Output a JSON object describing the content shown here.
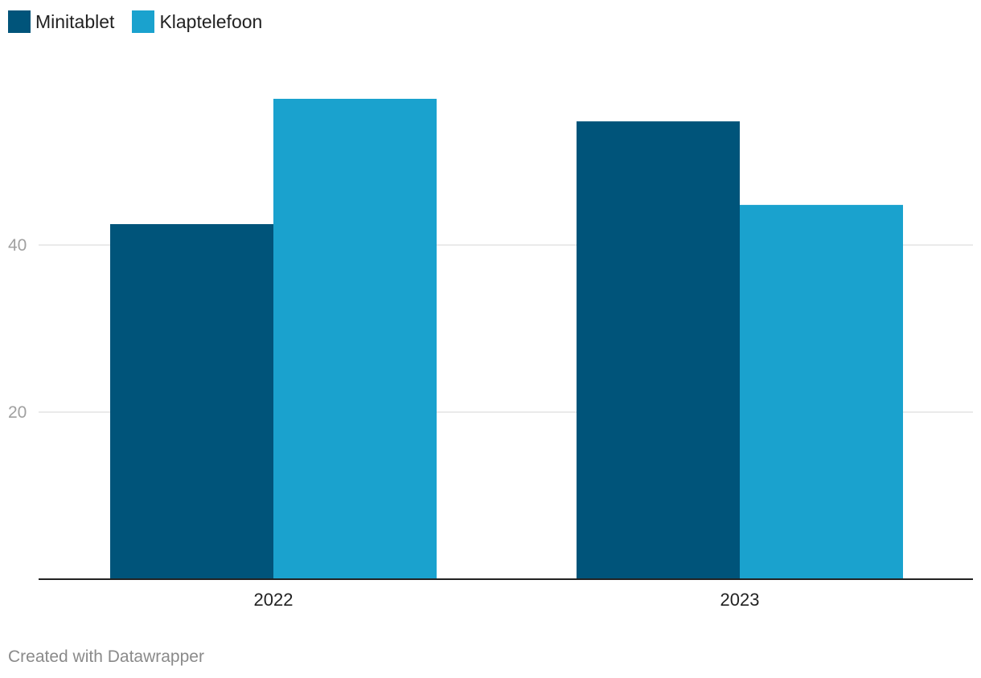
{
  "chart_data": {
    "type": "bar",
    "categories": [
      "2022",
      "2023"
    ],
    "series": [
      {
        "name": "Minitablet",
        "color": "#00547a",
        "values": [
          42.5,
          54.8
        ]
      },
      {
        "name": "Klaptelefoon",
        "color": "#1aa2ce",
        "values": [
          57.5,
          44.8
        ]
      }
    ],
    "title": "",
    "xlabel": "",
    "ylabel": "",
    "ylim": [
      0,
      60
    ],
    "yticks": [
      20,
      40
    ],
    "grid": true,
    "legend_position": "top-left"
  },
  "footer": {
    "credit": "Created with Datawrapper"
  }
}
